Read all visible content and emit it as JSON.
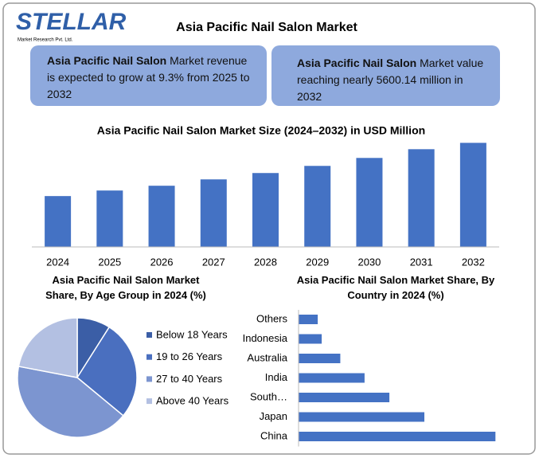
{
  "header": {
    "logo": "STELLAR",
    "logo_subtitle": "Market Research Pvt. Ltd.",
    "title": "Asia Pacific Nail Salon Market"
  },
  "boxes": [
    {
      "bold": "Asia Pacific Nail Salon",
      "text": "Market revenue is expected to grow at 9.3% from 2025 to 2032"
    },
    {
      "bold": "Asia Pacific Nail Salon",
      "text": "Market value reaching nearly 5600.14 million in 2032"
    }
  ],
  "chart_data": [
    {
      "type": "bar",
      "title": "Asia Pacific Nail Salon Market Size (2024–2032) in USD Million",
      "categories": [
        "2024",
        "2025",
        "2026",
        "2027",
        "2028",
        "2029",
        "2030",
        "2031",
        "2032"
      ],
      "values": [
        2736,
        3035,
        3292,
        3634,
        3976,
        4360,
        4788,
        5258,
        5600.14
      ],
      "color": "#4472c4",
      "ylim": [
        0,
        6000
      ]
    },
    {
      "type": "pie",
      "title": "Asia Pacific Nail Salon Market Share, By Age Group in 2024 (%)",
      "categories": [
        "Below 18 Years",
        "19 to 26 Years",
        "27 to 40 Years",
        "Above 40 Years"
      ],
      "values": [
        9,
        27,
        42,
        22
      ],
      "colors": [
        "#3b5ea6",
        "#4a6fbf",
        "#7c95d0",
        "#b3c0e2"
      ],
      "legend": "right"
    },
    {
      "type": "hbar",
      "title": "Asia Pacific Nail Salon Market Share, By Country in 2024 (%)",
      "categories": [
        "Others",
        "Indonesia",
        "Australia",
        "India",
        "South…",
        "Japan",
        "China"
      ],
      "values": [
        3.4,
        4.1,
        7.4,
        11.7,
        16.1,
        22.3,
        34.9
      ],
      "color": "#4472c4",
      "xlim": [
        0,
        35
      ]
    }
  ]
}
